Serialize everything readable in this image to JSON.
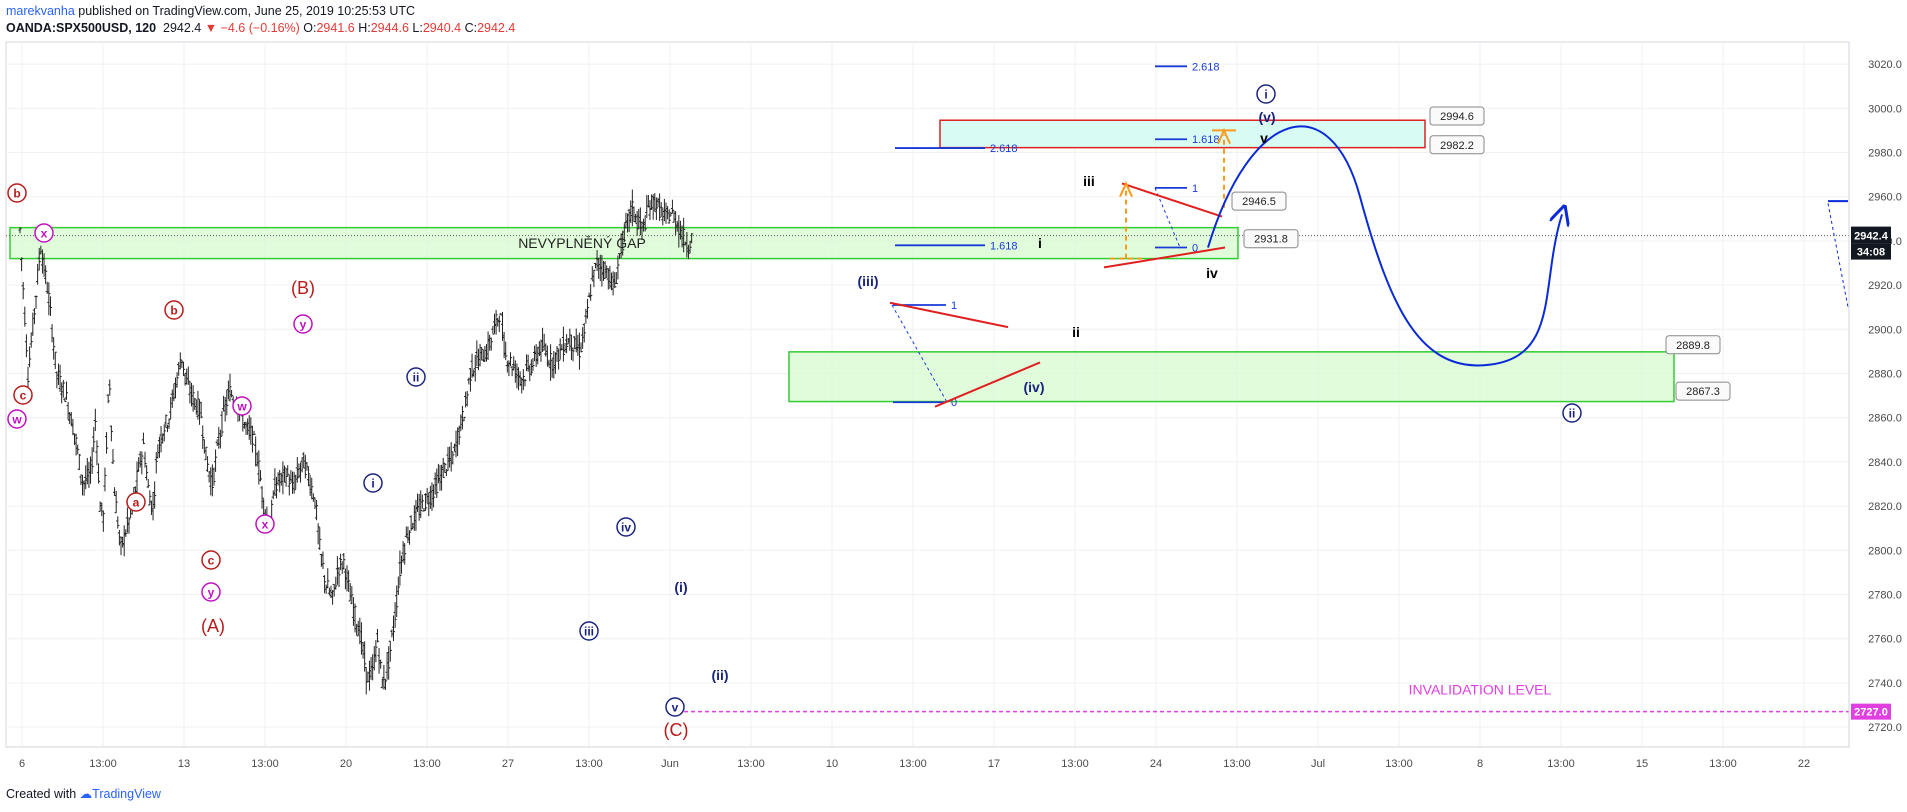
{
  "header": {
    "author": "marekvanha",
    "published": " published on TradingView.com, June 25, 2019 10:25:53 UTC",
    "symbol": "OANDA:SPX500USD, 120",
    "last": "2942.4",
    "change": "▼ −4.6 (−0.16%)",
    "o_label": "O:",
    "o_val": "2941.6",
    "h_label": "H:",
    "h_val": "2944.6",
    "l_label": "L:",
    "l_val": "2940.4",
    "c_label": "C:",
    "c_val": "2942.4"
  },
  "footer": {
    "created_with": "Created with",
    "brand": "TradingView"
  },
  "chart_data": {
    "type": "candlestick",
    "y_ticks": [
      2720,
      2740,
      2760,
      2780,
      2800,
      2820,
      2840,
      2860,
      2880,
      2900,
      2920,
      2940,
      2960,
      2980,
      3000,
      3020
    ],
    "ylim": [
      2711,
      3030
    ],
    "x_ticks": [
      "6",
      "13:00",
      "13",
      "13:00",
      "20",
      "13:00",
      "27",
      "13:00",
      "Jun",
      "13:00",
      "10",
      "13:00",
      "17",
      "13:00",
      "24",
      "13:00",
      "Jul",
      "13:00",
      "8",
      "13:00",
      "15",
      "13:00",
      "22"
    ],
    "price_path": [
      [
        0.0,
        2945
      ],
      [
        0.7,
        2880
      ],
      [
        1.2,
        2905
      ],
      [
        1.8,
        2938
      ],
      [
        2.5,
        2915
      ],
      [
        3.2,
        2880
      ],
      [
        4.0,
        2870
      ],
      [
        4.8,
        2852
      ],
      [
        5.5,
        2830
      ],
      [
        6.2,
        2835
      ],
      [
        6.6,
        2860
      ],
      [
        7.0,
        2820
      ],
      [
        7.3,
        2815
      ],
      [
        7.8,
        2880
      ],
      [
        8.2,
        2830
      ],
      [
        8.8,
        2800
      ],
      [
        9.3,
        2810
      ],
      [
        9.8,
        2818
      ],
      [
        10.3,
        2835
      ],
      [
        10.8,
        2848
      ],
      [
        11.2,
        2828
      ],
      [
        11.6,
        2818
      ],
      [
        12.0,
        2845
      ],
      [
        12.5,
        2855
      ],
      [
        13.0,
        2860
      ],
      [
        13.6,
        2875
      ],
      [
        14.1,
        2888
      ],
      [
        14.6,
        2875
      ],
      [
        15.2,
        2868
      ],
      [
        15.8,
        2862
      ],
      [
        16.3,
        2840
      ],
      [
        16.8,
        2830
      ],
      [
        17.3,
        2848
      ],
      [
        17.8,
        2862
      ],
      [
        18.3,
        2872
      ],
      [
        18.8,
        2868
      ],
      [
        19.3,
        2862
      ],
      [
        19.8,
        2855
      ],
      [
        20.3,
        2852
      ],
      [
        20.8,
        2840
      ],
      [
        21.3,
        2820
      ],
      [
        21.8,
        2810
      ],
      [
        22.3,
        2830
      ],
      [
        22.8,
        2832
      ],
      [
        23.3,
        2835
      ],
      [
        23.8,
        2828
      ],
      [
        24.3,
        2835
      ],
      [
        24.8,
        2840
      ],
      [
        25.3,
        2832
      ],
      [
        25.8,
        2822
      ],
      [
        26.2,
        2800
      ],
      [
        26.7,
        2785
      ],
      [
        27.3,
        2778
      ],
      [
        27.8,
        2792
      ],
      [
        28.3,
        2795
      ],
      [
        28.8,
        2780
      ],
      [
        29.3,
        2770
      ],
      [
        29.8,
        2760
      ],
      [
        30.3,
        2742
      ],
      [
        30.8,
        2745
      ],
      [
        31.2,
        2760
      ],
      [
        31.7,
        2738
      ],
      [
        32.2,
        2750
      ],
      [
        32.7,
        2768
      ],
      [
        33.2,
        2792
      ],
      [
        33.7,
        2805
      ],
      [
        34.2,
        2812
      ],
      [
        34.8,
        2818
      ],
      [
        35.4,
        2822
      ],
      [
        36.0,
        2826
      ],
      [
        36.6,
        2832
      ],
      [
        37.2,
        2838
      ],
      [
        37.8,
        2842
      ],
      [
        38.4,
        2855
      ],
      [
        38.9,
        2865
      ],
      [
        39.3,
        2880
      ],
      [
        39.8,
        2885
      ],
      [
        40.3,
        2888
      ],
      [
        40.8,
        2890
      ],
      [
        41.4,
        2900
      ],
      [
        41.9,
        2908
      ],
      [
        42.4,
        2888
      ],
      [
        42.9,
        2885
      ],
      [
        43.4,
        2880
      ],
      [
        43.9,
        2878
      ],
      [
        44.4,
        2882
      ],
      [
        44.9,
        2885
      ],
      [
        45.4,
        2892
      ],
      [
        45.9,
        2890
      ],
      [
        46.4,
        2885
      ],
      [
        46.9,
        2888
      ],
      [
        47.4,
        2892
      ],
      [
        47.9,
        2895
      ],
      [
        48.4,
        2893
      ],
      [
        48.9,
        2890
      ],
      [
        49.4,
        2902
      ],
      [
        49.9,
        2920
      ],
      [
        50.4,
        2930
      ],
      [
        50.9,
        2928
      ],
      [
        51.4,
        2925
      ],
      [
        51.9,
        2918
      ],
      [
        52.4,
        2935
      ],
      [
        52.9,
        2945
      ],
      [
        53.4,
        2955
      ],
      [
        53.9,
        2950
      ],
      [
        54.4,
        2945
      ],
      [
        54.9,
        2955
      ],
      [
        55.4,
        2958
      ],
      [
        55.9,
        2954
      ],
      [
        56.4,
        2950
      ],
      [
        56.9,
        2953
      ],
      [
        57.4,
        2948
      ],
      [
        57.9,
        2942
      ],
      [
        58.4,
        2938
      ],
      [
        58.7,
        2942
      ]
    ],
    "last_price": 2942.4,
    "price_label": "2942.4",
    "countdown_label": "34:08",
    "invalidation": {
      "price": 2727.0,
      "label": "INVALIDATION LEVEL",
      "tag": "2727.0"
    },
    "zones": [
      {
        "name": "gap-zone",
        "from": 2932,
        "to": 2946,
        "label": "NEVYPLNĚNÝ GAP"
      },
      {
        "name": "support-zone",
        "from": 2867.3,
        "to": 2889.8
      },
      {
        "name": "target-zone",
        "from": 2982.2,
        "to": 2994.6
      }
    ],
    "callouts": [
      "2994.6",
      "2982.2",
      "2946.5",
      "2931.8",
      "2889.8",
      "2867.3"
    ],
    "fib_labels": [
      "2.618",
      "1.618",
      "1",
      "0",
      "2.618",
      "1.618",
      "1",
      "0",
      "1.618"
    ],
    "wave_labels": [
      {
        "t": "b",
        "c": "#b71c1c",
        "circle": true
      },
      {
        "t": "x",
        "c": "#c010c0",
        "circle": true
      },
      {
        "t": "c",
        "c": "#b71c1c",
        "circle": true
      },
      {
        "t": "w",
        "c": "#c010c0",
        "circle": true
      },
      {
        "t": "b",
        "c": "#b71c1c",
        "circle": true
      },
      {
        "t": "a",
        "c": "#b71c1c",
        "circle": true
      },
      {
        "t": "c",
        "c": "#b71c1c",
        "circle": true
      },
      {
        "t": "y",
        "c": "#c010c0",
        "circle": true
      },
      {
        "t": "(A)",
        "c": "#b71c1c",
        "circle": false
      },
      {
        "t": "w",
        "c": "#c010c0",
        "circle": true
      },
      {
        "t": "x",
        "c": "#c010c0",
        "circle": true
      },
      {
        "t": "(B)",
        "c": "#b71c1c",
        "circle": false
      },
      {
        "t": "y",
        "c": "#c010c0",
        "circle": true
      },
      {
        "t": "ii",
        "c": "#1a237e",
        "circle": true
      },
      {
        "t": "i",
        "c": "#1a237e",
        "circle": true
      },
      {
        "t": "iv",
        "c": "#1a237e",
        "circle": true
      },
      {
        "t": "iii",
        "c": "#1a237e",
        "circle": true
      },
      {
        "t": "v",
        "c": "#1a237e",
        "circle": true
      },
      {
        "t": "(C)",
        "c": "#b71c1c",
        "circle": false
      },
      {
        "t": "(i)",
        "c": "#1a237e",
        "circle": false
      },
      {
        "t": "(ii)",
        "c": "#1a237e",
        "circle": false
      },
      {
        "t": "(iii)",
        "c": "#1a237e",
        "circle": false
      },
      {
        "t": "(iv)",
        "c": "#1a237e",
        "circle": false
      },
      {
        "t": "i",
        "c": "#000000",
        "circle": false
      },
      {
        "t": "ii",
        "c": "#000000",
        "circle": false
      },
      {
        "t": "iii",
        "c": "#000000",
        "circle": false
      },
      {
        "t": "iv",
        "c": "#000000",
        "circle": false
      },
      {
        "t": "v",
        "c": "#000000",
        "circle": false
      },
      {
        "t": "(v)",
        "c": "#1a237e",
        "circle": false
      },
      {
        "t": "i",
        "c": "#1a237e",
        "circle": true
      },
      {
        "t": "ii",
        "c": "#1a237e",
        "circle": true
      }
    ],
    "colors": {
      "axis_text": "#4a4a4a",
      "grid": "#eef1f4",
      "zone_fill": "#d6fbcf",
      "zone_stroke": "#33cc33",
      "target_fill": "#d8fbf4",
      "target_stroke": "#e02020",
      "projection": "#0a2ad8",
      "invalidation": "#e040e0",
      "fib": "#1a3ad8",
      "triangle": "#e02020",
      "arrow": "#ff9a1a"
    }
  }
}
